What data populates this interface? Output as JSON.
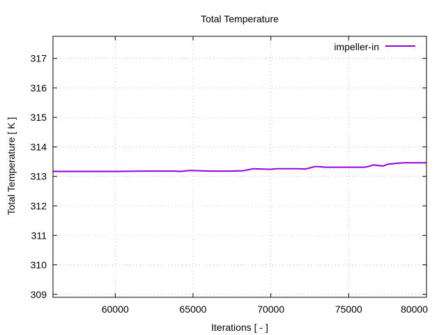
{
  "chart_data": {
    "type": "line",
    "title": "Total Temperature",
    "xlabel": "Iterations [ - ]",
    "ylabel": "Total Temperature [ K ]",
    "xlim": [
      56000,
      80000
    ],
    "ylim": [
      308.9,
      317.75
    ],
    "xticks": [
      60000,
      65000,
      70000,
      75000,
      80000
    ],
    "yticks": [
      309,
      310,
      311,
      312,
      313,
      314,
      315,
      316,
      317
    ],
    "grid": true,
    "legend_position": "top-right",
    "series": [
      {
        "name": "impeller-in",
        "color": "#9400d3",
        "x": [
          56000,
          58000,
          60000,
          62000,
          63800,
          64200,
          64800,
          65500,
          66200,
          67500,
          68200,
          68600,
          68900,
          69500,
          70000,
          70300,
          71000,
          71800,
          72200,
          72600,
          72800,
          73100,
          73500,
          74000,
          75000,
          76000,
          76300,
          76600,
          76900,
          77200,
          77500,
          77800,
          78200,
          78600,
          79000,
          80000
        ],
        "y": [
          313.17,
          313.17,
          313.17,
          313.18,
          313.18,
          313.17,
          313.2,
          313.19,
          313.18,
          313.18,
          313.19,
          313.23,
          313.26,
          313.25,
          313.24,
          313.26,
          313.26,
          313.26,
          313.25,
          313.3,
          313.33,
          313.33,
          313.31,
          313.31,
          313.31,
          313.31,
          313.34,
          313.39,
          313.37,
          313.35,
          313.41,
          313.43,
          313.45,
          313.46,
          313.46,
          313.46
        ]
      }
    ]
  }
}
